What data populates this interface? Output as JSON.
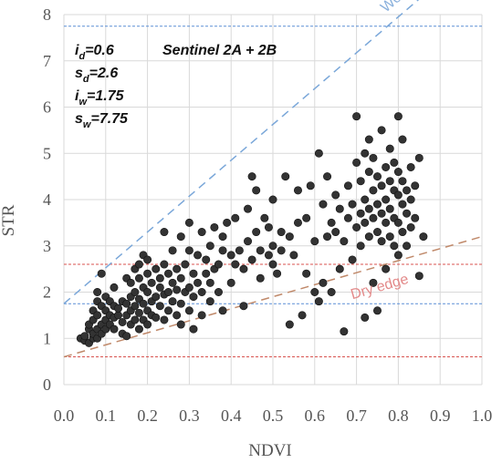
{
  "chart_data": {
    "type": "scatter",
    "title": "",
    "xlabel": "NDVI",
    "ylabel": "STR",
    "xlim": [
      0.0,
      1.0
    ],
    "ylim": [
      0,
      8
    ],
    "x_ticks": [
      "0.0",
      "0.1",
      "0.2",
      "0.3",
      "0.4",
      "0.5",
      "0.6",
      "0.7",
      "0.8",
      "0.9",
      "1.0"
    ],
    "y_ticks": [
      "0",
      "1",
      "2",
      "3",
      "4",
      "5",
      "6",
      "7",
      "8"
    ],
    "grid": true,
    "annotation_satellite": "Sentinel 2A + 2B",
    "params": [
      {
        "sym": "i",
        "sub": "d",
        "value": "=0.6"
      },
      {
        "sym": "s",
        "sub": "d",
        "value": "=2.6"
      },
      {
        "sym": "i",
        "sub": "w",
        "value": "=1.75"
      },
      {
        "sym": "s",
        "sub": "w",
        "value": "=7.75"
      }
    ],
    "wet_edge": {
      "label": "Wet edge",
      "intercept": 1.75,
      "slope": 7.75,
      "color": "#7aa7d9"
    },
    "dry_edge": {
      "label": "Dry edge",
      "intercept": 0.6,
      "slope": 2.6,
      "color": "#c0896a"
    },
    "wet_hlines": {
      "values": [
        1.75,
        7.75
      ],
      "color": "#5b8fd6"
    },
    "dry_hlines": {
      "values": [
        0.6,
        2.6
      ],
      "color": "#d9534f"
    },
    "point_color": "#333333",
    "points": [
      [
        0.04,
        1.0
      ],
      [
        0.05,
        0.95
      ],
      [
        0.05,
        1.05
      ],
      [
        0.06,
        1.2
      ],
      [
        0.06,
        1.3
      ],
      [
        0.06,
        0.9
      ],
      [
        0.07,
        1.0
      ],
      [
        0.07,
        1.1
      ],
      [
        0.07,
        1.4
      ],
      [
        0.07,
        1.6
      ],
      [
        0.08,
        1.0
      ],
      [
        0.08,
        1.2
      ],
      [
        0.08,
        1.5
      ],
      [
        0.08,
        1.8
      ],
      [
        0.08,
        2.0
      ],
      [
        0.09,
        1.1
      ],
      [
        0.09,
        1.3
      ],
      [
        0.09,
        1.7
      ],
      [
        0.09,
        2.4
      ],
      [
        0.1,
        1.2
      ],
      [
        0.1,
        1.4
      ],
      [
        0.1,
        1.6
      ],
      [
        0.1,
        1.9
      ],
      [
        0.11,
        1.3
      ],
      [
        0.11,
        1.5
      ],
      [
        0.11,
        1.8
      ],
      [
        0.12,
        1.2
      ],
      [
        0.12,
        1.45
      ],
      [
        0.12,
        1.7
      ],
      [
        0.12,
        2.1
      ],
      [
        0.13,
        1.5
      ],
      [
        0.13,
        1.65
      ],
      [
        0.14,
        1.1
      ],
      [
        0.14,
        1.35
      ],
      [
        0.14,
        1.8
      ],
      [
        0.15,
        1.05
      ],
      [
        0.15,
        1.5
      ],
      [
        0.15,
        1.75
      ],
      [
        0.15,
        2.3
      ],
      [
        0.16,
        1.3
      ],
      [
        0.16,
        1.6
      ],
      [
        0.16,
        1.9
      ],
      [
        0.16,
        2.2
      ],
      [
        0.17,
        1.4
      ],
      [
        0.17,
        1.7
      ],
      [
        0.17,
        2.0
      ],
      [
        0.17,
        2.5
      ],
      [
        0.18,
        1.2
      ],
      [
        0.18,
        1.55
      ],
      [
        0.18,
        1.85
      ],
      [
        0.18,
        2.3
      ],
      [
        0.18,
        2.6
      ],
      [
        0.19,
        1.4
      ],
      [
        0.19,
        1.75
      ],
      [
        0.19,
        2.1
      ],
      [
        0.19,
        2.8
      ],
      [
        0.2,
        1.3
      ],
      [
        0.2,
        1.6
      ],
      [
        0.2,
        2.0
      ],
      [
        0.2,
        2.4
      ],
      [
        0.2,
        2.7
      ],
      [
        0.21,
        1.5
      ],
      [
        0.21,
        1.8
      ],
      [
        0.21,
        2.2
      ],
      [
        0.22,
        1.45
      ],
      [
        0.22,
        1.9
      ],
      [
        0.22,
        2.5
      ],
      [
        0.23,
        1.7
      ],
      [
        0.23,
        2.1
      ],
      [
        0.23,
        2.3
      ],
      [
        0.24,
        1.4
      ],
      [
        0.24,
        1.95
      ],
      [
        0.24,
        2.6
      ],
      [
        0.24,
        3.3
      ],
      [
        0.25,
        1.6
      ],
      [
        0.25,
        2.0
      ],
      [
        0.25,
        2.4
      ],
      [
        0.26,
        1.8
      ],
      [
        0.26,
        2.2
      ],
      [
        0.26,
        2.9
      ],
      [
        0.27,
        1.5
      ],
      [
        0.27,
        2.05
      ],
      [
        0.27,
        2.5
      ],
      [
        0.28,
        1.3
      ],
      [
        0.28,
        1.75
      ],
      [
        0.28,
        2.3
      ],
      [
        0.28,
        3.2
      ],
      [
        0.29,
        2.0
      ],
      [
        0.29,
        2.6
      ],
      [
        0.3,
        1.6
      ],
      [
        0.3,
        2.1
      ],
      [
        0.3,
        2.9
      ],
      [
        0.3,
        3.5
      ],
      [
        0.31,
        1.2
      ],
      [
        0.31,
        1.9
      ],
      [
        0.31,
        2.4
      ],
      [
        0.32,
        2.2
      ],
      [
        0.32,
        2.8
      ],
      [
        0.33,
        1.5
      ],
      [
        0.33,
        2.0
      ],
      [
        0.33,
        3.3
      ],
      [
        0.34,
        2.4
      ],
      [
        0.34,
        2.7
      ],
      [
        0.35,
        1.8
      ],
      [
        0.35,
        2.2
      ],
      [
        0.35,
        3.0
      ],
      [
        0.36,
        2.5
      ],
      [
        0.36,
        3.4
      ],
      [
        0.37,
        2.0
      ],
      [
        0.37,
        2.6
      ],
      [
        0.38,
        1.6
      ],
      [
        0.38,
        2.9
      ],
      [
        0.38,
        3.2
      ],
      [
        0.39,
        3.5
      ],
      [
        0.4,
        2.2
      ],
      [
        0.4,
        2.8
      ],
      [
        0.41,
        2.6
      ],
      [
        0.41,
        3.6
      ],
      [
        0.42,
        2.9
      ],
      [
        0.43,
        1.7
      ],
      [
        0.43,
        2.5
      ],
      [
        0.44,
        3.1
      ],
      [
        0.44,
        3.8
      ],
      [
        0.45,
        2.7
      ],
      [
        0.45,
        4.5
      ],
      [
        0.46,
        3.3
      ],
      [
        0.46,
        4.2
      ],
      [
        0.47,
        2.3
      ],
      [
        0.47,
        2.9
      ],
      [
        0.48,
        3.6
      ],
      [
        0.49,
        2.8
      ],
      [
        0.49,
        3.4
      ],
      [
        0.5,
        2.6
      ],
      [
        0.5,
        3.0
      ],
      [
        0.5,
        4.0
      ],
      [
        0.51,
        2.4
      ],
      [
        0.52,
        3.3
      ],
      [
        0.52,
        2.9
      ],
      [
        0.53,
        4.5
      ],
      [
        0.54,
        1.3
      ],
      [
        0.54,
        3.2
      ],
      [
        0.55,
        2.8
      ],
      [
        0.56,
        3.5
      ],
      [
        0.56,
        4.2
      ],
      [
        0.57,
        1.5
      ],
      [
        0.58,
        2.4
      ],
      [
        0.58,
        3.6
      ],
      [
        0.59,
        4.3
      ],
      [
        0.6,
        2.0
      ],
      [
        0.6,
        3.1
      ],
      [
        0.61,
        1.8
      ],
      [
        0.61,
        5.0
      ],
      [
        0.62,
        2.2
      ],
      [
        0.62,
        3.9
      ],
      [
        0.63,
        3.2
      ],
      [
        0.63,
        4.5
      ],
      [
        0.64,
        2.0
      ],
      [
        0.64,
        3.5
      ],
      [
        0.65,
        3.3
      ],
      [
        0.65,
        4.1
      ],
      [
        0.66,
        2.5
      ],
      [
        0.66,
        3.8
      ],
      [
        0.67,
        1.15
      ],
      [
        0.67,
        3.1
      ],
      [
        0.68,
        3.6
      ],
      [
        0.68,
        4.3
      ],
      [
        0.69,
        2.7
      ],
      [
        0.69,
        3.9
      ],
      [
        0.7,
        3.4
      ],
      [
        0.7,
        5.8
      ],
      [
        0.7,
        4.8
      ],
      [
        0.71,
        3.0
      ],
      [
        0.71,
        3.7
      ],
      [
        0.71,
        4.4
      ],
      [
        0.72,
        1.45
      ],
      [
        0.72,
        3.5
      ],
      [
        0.72,
        4.0
      ],
      [
        0.72,
        5.0
      ],
      [
        0.73,
        3.2
      ],
      [
        0.73,
        3.8
      ],
      [
        0.73,
        4.6
      ],
      [
        0.73,
        5.3
      ],
      [
        0.74,
        2.2
      ],
      [
        0.74,
        3.6
      ],
      [
        0.74,
        4.2
      ],
      [
        0.74,
        4.9
      ],
      [
        0.75,
        1.6
      ],
      [
        0.75,
        3.3
      ],
      [
        0.75,
        3.9
      ],
      [
        0.75,
        4.5
      ],
      [
        0.76,
        3.1
      ],
      [
        0.76,
        3.7
      ],
      [
        0.76,
        4.3
      ],
      [
        0.76,
        5.5
      ],
      [
        0.77,
        2.5
      ],
      [
        0.77,
        3.5
      ],
      [
        0.77,
        4.0
      ],
      [
        0.77,
        4.7
      ],
      [
        0.78,
        3.2
      ],
      [
        0.78,
        3.8
      ],
      [
        0.78,
        4.4
      ],
      [
        0.78,
        5.1
      ],
      [
        0.79,
        3.0
      ],
      [
        0.79,
        3.6
      ],
      [
        0.79,
        4.2
      ],
      [
        0.79,
        4.8
      ],
      [
        0.8,
        2.8
      ],
      [
        0.8,
        3.5
      ],
      [
        0.8,
        4.1
      ],
      [
        0.8,
        4.6
      ],
      [
        0.8,
        5.8
      ],
      [
        0.81,
        3.3
      ],
      [
        0.81,
        3.9
      ],
      [
        0.81,
        4.4
      ],
      [
        0.81,
        5.3
      ],
      [
        0.82,
        3.0
      ],
      [
        0.82,
        3.7
      ],
      [
        0.82,
        4.2
      ],
      [
        0.83,
        3.4
      ],
      [
        0.83,
        4.0
      ],
      [
        0.83,
        4.7
      ],
      [
        0.84,
        3.6
      ],
      [
        0.84,
        4.3
      ],
      [
        0.85,
        2.35
      ],
      [
        0.85,
        4.9
      ],
      [
        0.86,
        3.2
      ]
    ]
  }
}
